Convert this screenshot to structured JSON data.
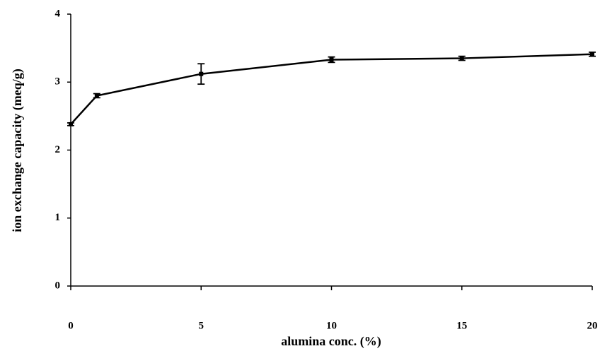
{
  "chart_data": {
    "type": "line",
    "xlabel": "alumina conc. (%)",
    "ylabel": "ion exchange capacity (meq/g)",
    "x": [
      0,
      1,
      5,
      10,
      15,
      20
    ],
    "values": [
      2.38,
      2.8,
      3.12,
      3.33,
      3.35,
      3.41
    ],
    "errors": [
      0.02,
      0.03,
      0.15,
      0.04,
      0.03,
      0.03
    ],
    "color": "#000000",
    "xlim": [
      0,
      20
    ],
    "xticks": [
      0,
      5,
      10,
      15,
      20
    ],
    "ylim": [
      0,
      4
    ],
    "yticks": [
      0,
      1,
      2,
      3,
      4
    ],
    "grid": false
  }
}
